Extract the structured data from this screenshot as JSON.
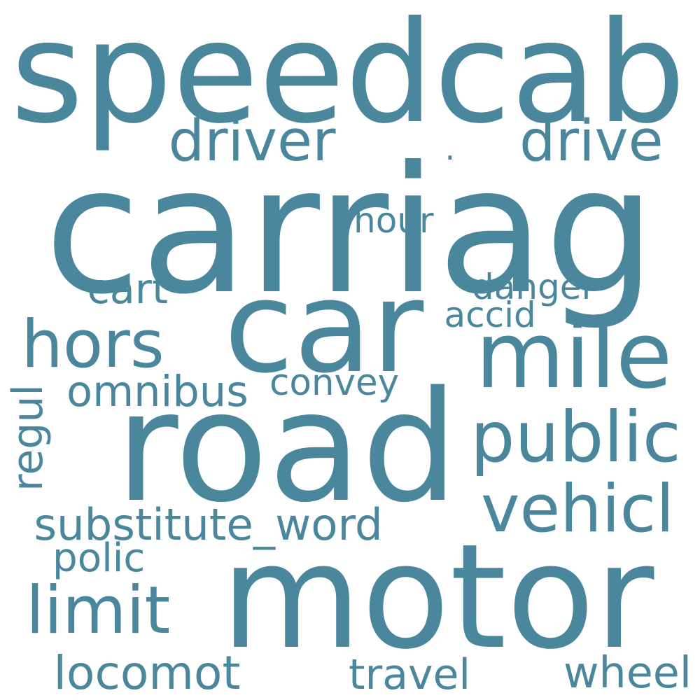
{
  "color": "#4a879c",
  "words": [
    {
      "text": "speedcab"
    },
    {
      "text": "carriag"
    },
    {
      "text": "car"
    },
    {
      "text": "road"
    },
    {
      "text": "motor"
    },
    {
      "text": "mile"
    },
    {
      "text": "public"
    },
    {
      "text": "vehicl"
    },
    {
      "text": "driver"
    },
    {
      "text": "drive"
    },
    {
      "text": "hors"
    },
    {
      "text": "limit"
    },
    {
      "text": "locomot"
    },
    {
      "text": "wheel"
    },
    {
      "text": "substitute_word"
    },
    {
      "text": "omnibus"
    },
    {
      "text": "cart"
    },
    {
      "text": "hour"
    },
    {
      "text": "danger"
    },
    {
      "text": "accid"
    },
    {
      "text": "convey"
    },
    {
      "text": "polic"
    },
    {
      "text": "travel"
    },
    {
      "text": "regul",
      "vertical": true
    },
    {
      "text": "."
    }
  ]
}
